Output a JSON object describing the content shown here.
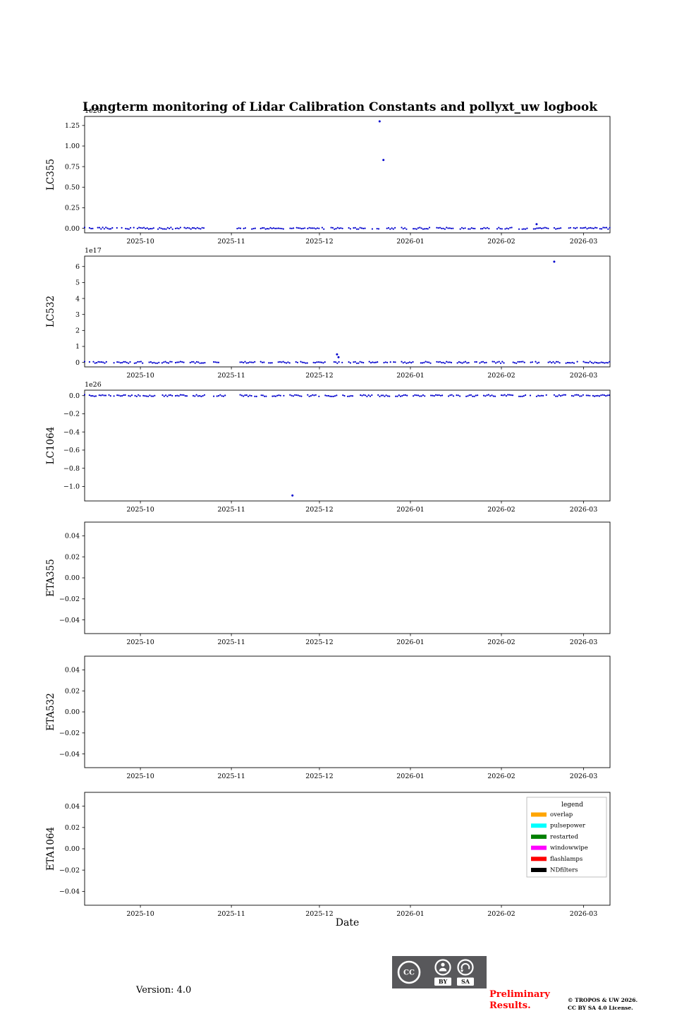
{
  "title": "Longterm monitoring of Lidar Calibration Constants and pollyxt_uw logbook",
  "xlabel": "Date",
  "colors": {
    "point": "#0000cd",
    "preliminary": "#ff0000",
    "badge_bg": "#58585b",
    "axis": "#000000"
  },
  "footer": {
    "version": "Version: 4.0",
    "preliminary_line1": "Preliminary",
    "preliminary_line2": "Results.",
    "copyright_line1": "© TROPOS & UW 2026.",
    "copyright_line2": "CC BY SA 4.0 License.",
    "badge": {
      "cc": "CC",
      "by": "BY",
      "sa": "SA"
    }
  },
  "legend": {
    "title": "legend",
    "entries": [
      {
        "label": "overlap",
        "color": "#ffa500"
      },
      {
        "label": "pulsepower",
        "color": "#00ffff"
      },
      {
        "label": "restarted",
        "color": "#008000"
      },
      {
        "label": "windowwipe",
        "color": "#ff00ff"
      },
      {
        "label": "flashlamps",
        "color": "#ff0000"
      },
      {
        "label": "NDfilters",
        "color": "#000000"
      }
    ]
  },
  "x_axis": {
    "start_date": "2025-09-12",
    "end_date": "2026-03-10",
    "domain_days": [
      0,
      179
    ],
    "tick_days": [
      19,
      50,
      80,
      111,
      142,
      170
    ],
    "tick_labels": [
      "2025-10",
      "2025-11",
      "2025-12",
      "2026-01",
      "2026-02",
      "2026-03"
    ]
  },
  "chart_data": [
    {
      "type": "scatter",
      "name": "LC355",
      "ylabel": "LC355",
      "offset_label": "1e26",
      "ylim": [
        -0.055,
        1.36
      ],
      "grid": false,
      "yticks": [
        {
          "v": 0.0,
          "label": "0.00"
        },
        {
          "v": 0.25,
          "label": "0.25"
        },
        {
          "v": 0.5,
          "label": "0.50"
        },
        {
          "v": 0.75,
          "label": "0.75"
        },
        {
          "v": 1.0,
          "label": "1.00"
        },
        {
          "v": 1.25,
          "label": "1.25"
        }
      ],
      "zero_segments_days": [
        [
          0,
          3
        ],
        [
          4.5,
          10
        ],
        [
          11,
          13
        ],
        [
          14,
          17
        ],
        [
          18,
          24
        ],
        [
          25,
          30
        ],
        [
          31,
          33
        ],
        [
          34,
          41
        ],
        [
          52,
          55
        ],
        [
          57,
          58.5
        ],
        [
          60,
          68
        ],
        [
          69.5,
          75
        ],
        [
          76,
          82
        ],
        [
          84,
          88
        ],
        [
          90,
          96
        ],
        [
          98,
          101
        ],
        [
          103,
          106
        ],
        [
          108,
          110
        ],
        [
          112,
          118
        ],
        [
          120,
          126
        ],
        [
          128,
          133
        ],
        [
          135,
          138
        ],
        [
          140,
          146
        ],
        [
          148,
          151
        ],
        [
          153,
          158
        ],
        [
          160,
          163
        ],
        [
          165,
          168
        ],
        [
          169,
          179
        ]
      ],
      "outliers": [
        [
          100.5,
          1.3
        ],
        [
          101.8,
          0.83
        ],
        [
          154,
          0.05
        ]
      ]
    },
    {
      "type": "scatter",
      "name": "LC532",
      "ylabel": "LC532",
      "offset_label": "1e17",
      "ylim": [
        -0.28,
        6.65
      ],
      "grid": false,
      "yticks": [
        {
          "v": 0,
          "label": "0"
        },
        {
          "v": 1,
          "label": "1"
        },
        {
          "v": 2,
          "label": "2"
        },
        {
          "v": 3,
          "label": "3"
        },
        {
          "v": 4,
          "label": "4"
        },
        {
          "v": 5,
          "label": "5"
        },
        {
          "v": 6,
          "label": "6"
        }
      ],
      "zero_segments_days": [
        [
          0,
          2
        ],
        [
          3,
          8
        ],
        [
          10,
          16
        ],
        [
          17,
          20
        ],
        [
          22,
          30
        ],
        [
          31,
          34
        ],
        [
          36,
          41
        ],
        [
          44,
          46
        ],
        [
          53,
          58
        ],
        [
          60,
          64
        ],
        [
          66,
          70
        ],
        [
          72,
          76
        ],
        [
          78,
          82
        ],
        [
          85,
          88
        ],
        [
          90,
          95
        ],
        [
          97,
          100
        ],
        [
          102,
          106
        ],
        [
          108,
          112
        ],
        [
          114,
          118
        ],
        [
          120,
          125
        ],
        [
          127,
          131
        ],
        [
          133,
          137
        ],
        [
          139,
          143
        ],
        [
          146,
          150
        ],
        [
          152,
          155
        ],
        [
          158,
          162
        ],
        [
          164,
          168
        ],
        [
          170,
          179
        ]
      ],
      "outliers": [
        [
          86,
          0.5
        ],
        [
          86.5,
          0.33
        ],
        [
          160,
          6.3
        ]
      ]
    },
    {
      "type": "scatter",
      "name": "LC1064",
      "ylabel": "LC1064",
      "offset_label": "1e26",
      "ylim": [
        -1.16,
        0.06
      ],
      "grid": false,
      "yticks": [
        {
          "v": 0.0,
          "label": "0.0"
        },
        {
          "v": -0.2,
          "label": "−0.2"
        },
        {
          "v": -0.4,
          "label": "−0.4"
        },
        {
          "v": -0.6,
          "label": "−0.6"
        },
        {
          "v": -0.8,
          "label": "−0.8"
        },
        {
          "v": -1.0,
          "label": "−1.0"
        }
      ],
      "zero_segments_days": [
        [
          0,
          4
        ],
        [
          5,
          9
        ],
        [
          10,
          14
        ],
        [
          15,
          19
        ],
        [
          20,
          24
        ],
        [
          26,
          30
        ],
        [
          31,
          35
        ],
        [
          37,
          41
        ],
        [
          44,
          48
        ],
        [
          53,
          57
        ],
        [
          58,
          62
        ],
        [
          64,
          68
        ],
        [
          70,
          74
        ],
        [
          76,
          80
        ],
        [
          82,
          86
        ],
        [
          88,
          92
        ],
        [
          94,
          98
        ],
        [
          100,
          104
        ],
        [
          106,
          110
        ],
        [
          112,
          116
        ],
        [
          118,
          122
        ],
        [
          124,
          128
        ],
        [
          130,
          134
        ],
        [
          136,
          140
        ],
        [
          142,
          146
        ],
        [
          148,
          152
        ],
        [
          154,
          158
        ],
        [
          160,
          164
        ],
        [
          166,
          170
        ],
        [
          171,
          179
        ]
      ],
      "outliers": [
        [
          70.8,
          -1.1
        ]
      ]
    },
    {
      "type": "scatter",
      "name": "ETA355",
      "ylabel": "ETA355",
      "offset_label": null,
      "ylim": [
        -0.053,
        0.053
      ],
      "grid": false,
      "yticks": [
        {
          "v": 0.04,
          "label": "0.04"
        },
        {
          "v": 0.02,
          "label": "0.02"
        },
        {
          "v": 0.0,
          "label": "0.00"
        },
        {
          "v": -0.02,
          "label": "−0.02"
        },
        {
          "v": -0.04,
          "label": "−0.04"
        }
      ],
      "zero_segments_days": [],
      "outliers": []
    },
    {
      "type": "scatter",
      "name": "ETA532",
      "ylabel": "ETA532",
      "offset_label": null,
      "ylim": [
        -0.053,
        0.053
      ],
      "grid": false,
      "yticks": [
        {
          "v": 0.04,
          "label": "0.04"
        },
        {
          "v": 0.02,
          "label": "0.02"
        },
        {
          "v": 0.0,
          "label": "0.00"
        },
        {
          "v": -0.02,
          "label": "−0.02"
        },
        {
          "v": -0.04,
          "label": "−0.04"
        }
      ],
      "zero_segments_days": [],
      "outliers": []
    },
    {
      "type": "scatter",
      "name": "ETA1064",
      "ylabel": "ETA1064",
      "offset_label": null,
      "ylim": [
        -0.053,
        0.053
      ],
      "grid": false,
      "yticks": [
        {
          "v": 0.04,
          "label": "0.04"
        },
        {
          "v": 0.02,
          "label": "0.02"
        },
        {
          "v": 0.0,
          "label": "0.00"
        },
        {
          "v": -0.02,
          "label": "−0.02"
        },
        {
          "v": -0.04,
          "label": "−0.04"
        }
      ],
      "zero_segments_days": [],
      "outliers": [],
      "has_legend": true
    }
  ]
}
